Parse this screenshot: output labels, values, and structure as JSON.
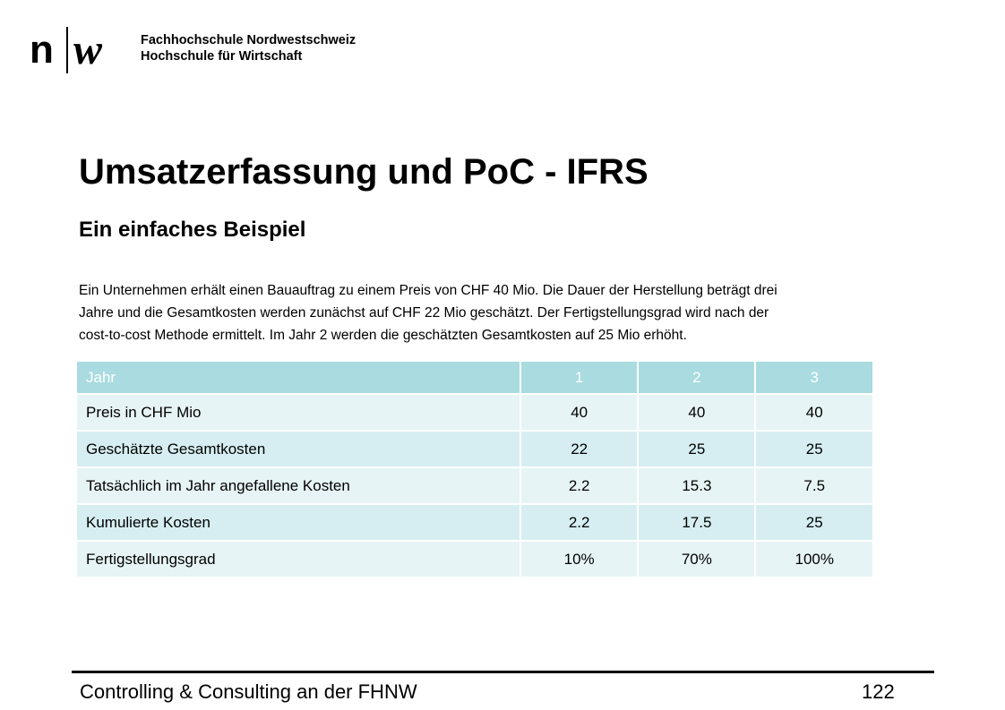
{
  "logo": {
    "n": "n",
    "w": "w"
  },
  "institution": {
    "line1": "Fachhochschule Nordwestschweiz",
    "line2": "Hochschule für Wirtschaft"
  },
  "title": "Umsatzerfassung und PoC - IFRS",
  "subtitle": "Ein einfaches Beispiel",
  "body_lines": [
    "Ein Unternehmen erhält einen Bauauftrag zu einem Preis von CHF 40 Mio. Die Dauer der Herstellung beträgt drei",
    "Jahre und die Gesamtkosten werden zunächst auf CHF 22 Mio geschätzt. Der Fertigstellungsgrad wird nach der",
    "cost-to-cost Methode ermittelt. Im Jahr 2 werden die geschätzten Gesamtkosten auf 25 Mio erhöht."
  ],
  "table": {
    "header": [
      "Jahr",
      "1",
      "2",
      "3"
    ],
    "rows": [
      [
        "Preis in CHF Mio",
        "40",
        "40",
        "40"
      ],
      [
        "Geschätzte Gesamtkosten",
        "22",
        "25",
        "25"
      ],
      [
        "Tatsächlich im Jahr angefallene Kosten",
        "2.2",
        "15.3",
        "7.5"
      ],
      [
        "Kumulierte Kosten",
        "2.2",
        "17.5",
        "25"
      ],
      [
        "Fertigstellungsgrad",
        "10%",
        "70%",
        "100%"
      ]
    ]
  },
  "footer": {
    "left": "Controlling & Consulting an der FHNW",
    "page": "122"
  }
}
